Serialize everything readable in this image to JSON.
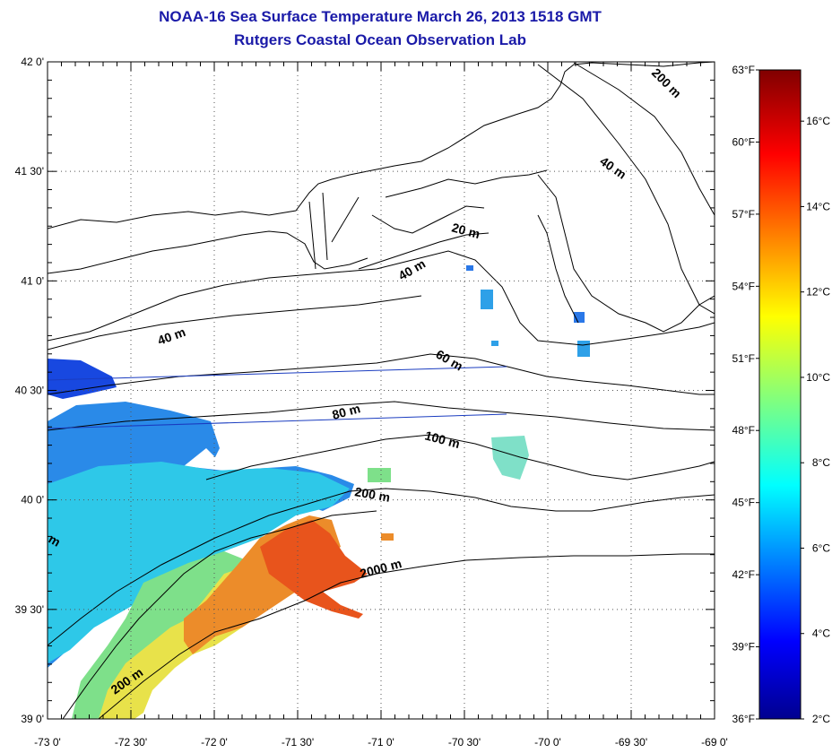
{
  "title": {
    "line1": "NOAA-16 Sea Surface Temperature March 26, 2013 1518 GMT",
    "line2": "Rutgers Coastal Ocean Observation Lab"
  },
  "map": {
    "lon_range": [
      -73.0,
      -69.0
    ],
    "lat_range": [
      39.0,
      42.0
    ],
    "lon_ticks": [
      "-73 0'",
      "-72 30'",
      "-72 0'",
      "-71 30'",
      "-71 0'",
      "-70 30'",
      "-70 0'",
      "-69 30'",
      "-69 0'"
    ],
    "lat_ticks": [
      "39 0'",
      "39 30'",
      "40 0'",
      "40 30'",
      "41 0'",
      "41 30'",
      "42 0'"
    ]
  },
  "contour_labels": [
    "20 m",
    "40 m",
    "40 m",
    "40 m",
    "60 m",
    "80 m",
    "100 m",
    "200 m",
    "200 m",
    "200 m",
    "2000 m",
    "m"
  ],
  "colorbar": {
    "fahrenheit_labels": [
      "36°F",
      "39°F",
      "42°F",
      "45°F",
      "48°F",
      "51°F",
      "54°F",
      "57°F",
      "60°F",
      "63°F"
    ],
    "celsius_labels": [
      "2°C",
      "4°C",
      "6°C",
      "8°C",
      "10°C",
      "12°C",
      "14°C",
      "16°C"
    ],
    "celsius_range": [
      2,
      17.2
    ],
    "colors": [
      "#00008f",
      "#0000ff",
      "#0080ff",
      "#00ffff",
      "#80ff80",
      "#ffff00",
      "#ff8000",
      "#ff0000",
      "#800000"
    ]
  }
}
